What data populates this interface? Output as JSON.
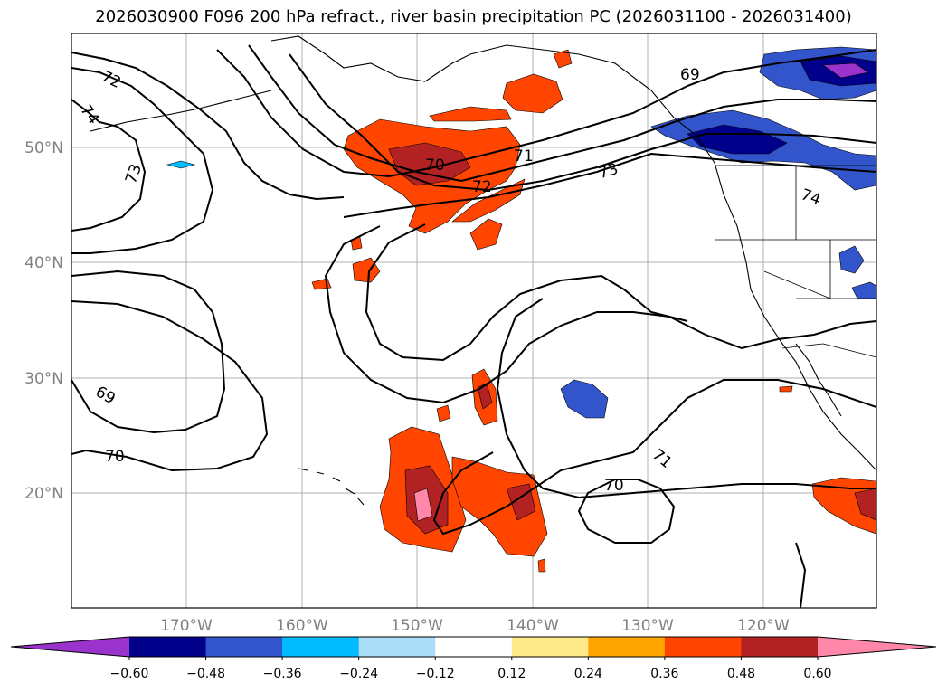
{
  "title": "2026030900 F096 200 hPa refract., river basin precipitation PC (2026031100 - 2026031400)",
  "latitude_labels": [
    "20°N",
    "30°N",
    "40°N",
    "50°N"
  ],
  "longitude_labels": [
    "170°W",
    "160°W",
    "150°W",
    "140°W",
    "130°W",
    "120°W"
  ],
  "contour_labels": [
    "72",
    "74",
    "73",
    "69",
    "70",
    "70",
    "72",
    "71",
    "73",
    "69",
    "74",
    "71",
    "70"
  ],
  "colorbar": {
    "ticks": [
      "−0.60",
      "−0.48",
      "−0.36",
      "−0.24",
      "−0.12",
      "0.12",
      "0.24",
      "0.36",
      "0.48",
      "0.60"
    ],
    "colors": [
      "#9933cc",
      "#00008b",
      "#3355cc",
      "#00bbff",
      "#aaddf7",
      "#ffffff",
      "#ffea8a",
      "#ffa500",
      "#ff4500",
      "#b22222",
      "#ff88aa"
    ]
  }
}
